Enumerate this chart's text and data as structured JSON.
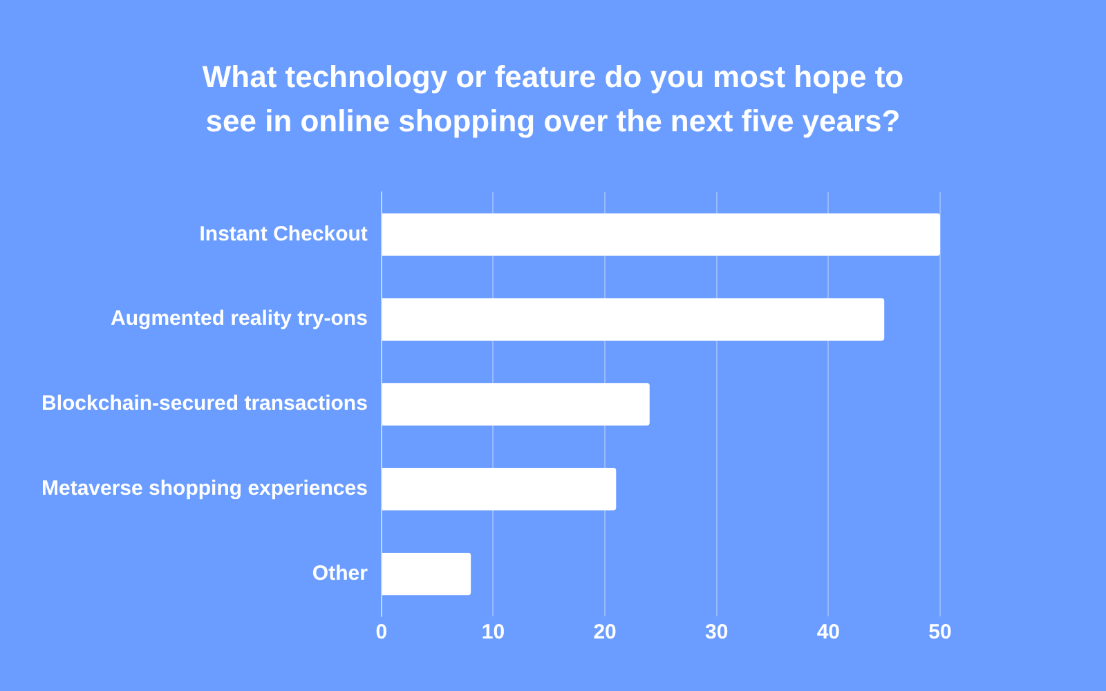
{
  "chart_data": {
    "type": "bar",
    "orientation": "horizontal",
    "title": "What technology or feature do you most hope to see in online shopping over the next five years?",
    "categories": [
      "Instant Checkout",
      "Augmented reality try-ons",
      "Blockchain-secured transactions",
      "Metaverse shopping experiences",
      "Other"
    ],
    "values": [
      50,
      45,
      24,
      21,
      8
    ],
    "color": "#ffffff",
    "xlim": [
      0,
      50
    ],
    "xticks": [
      0,
      10,
      20,
      30,
      40,
      50
    ],
    "grid": "x",
    "legend": false
  }
}
